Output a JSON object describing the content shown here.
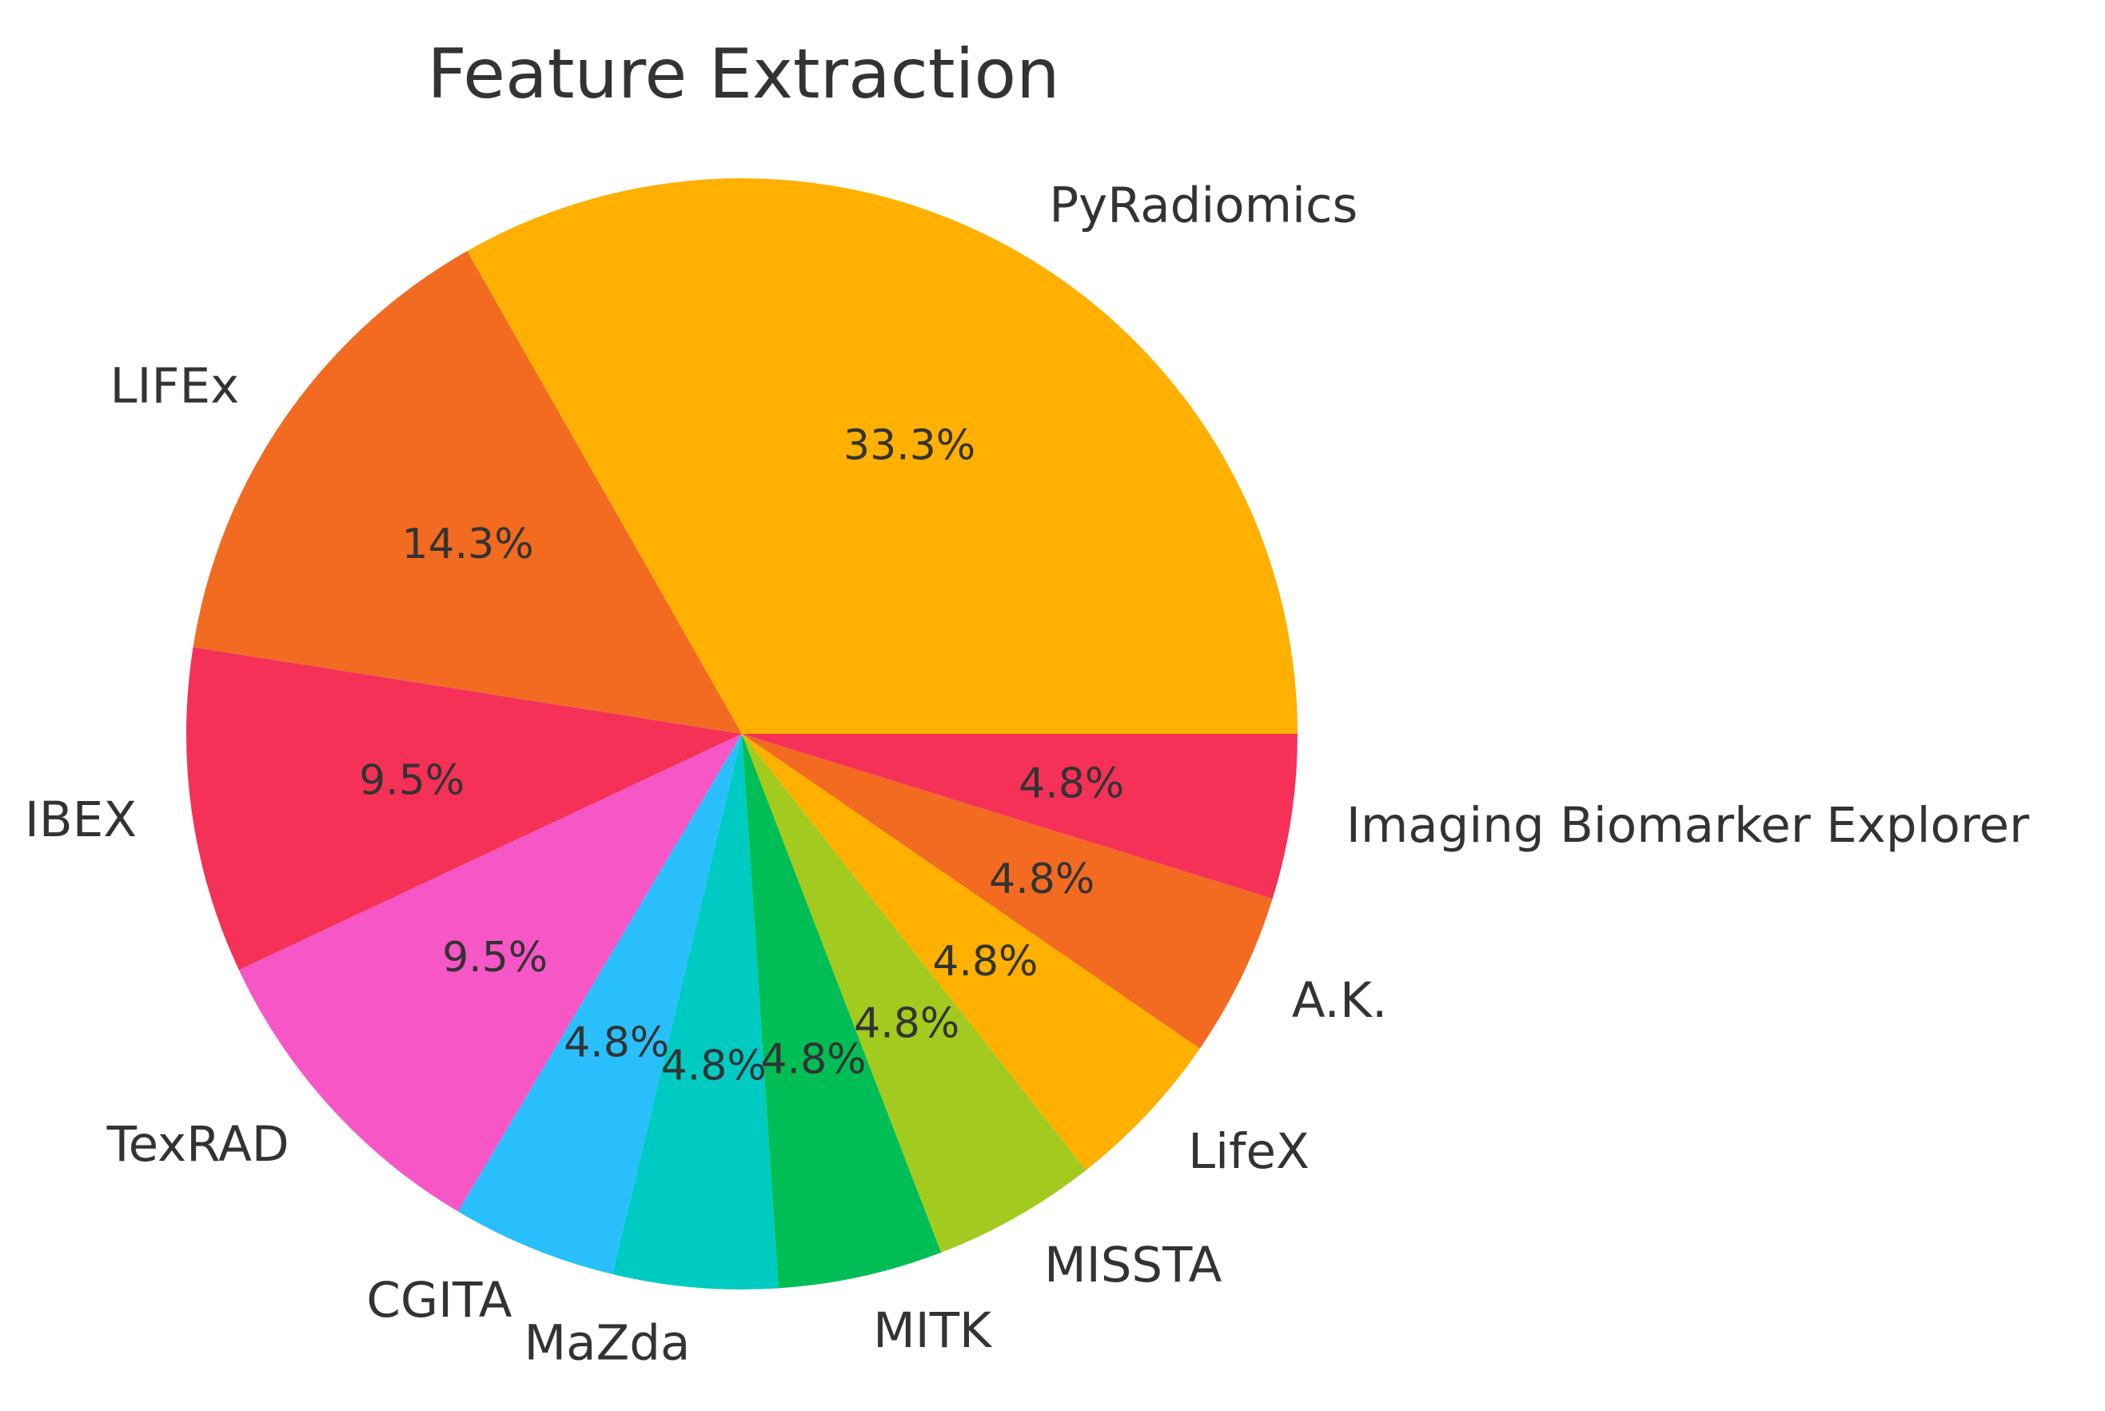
{
  "chart_data": {
    "type": "pie",
    "title": "Feature Extraction",
    "start_angle": 0,
    "direction": "counterclockwise",
    "slices": [
      {
        "label": "PyRadiomics",
        "value": 33.3,
        "pct_label": "33.3%",
        "color": "#FFB000"
      },
      {
        "label": "LIFEx",
        "value": 14.3,
        "pct_label": "14.3%",
        "color": "#F26B21"
      },
      {
        "label": "IBEX",
        "value": 9.5,
        "pct_label": "9.5%",
        "color": "#F53158"
      },
      {
        "label": "TexRAD",
        "value": 9.5,
        "pct_label": "9.5%",
        "color": "#F756C6"
      },
      {
        "label": "CGITA",
        "value": 4.8,
        "pct_label": "4.8%",
        "color": "#29BFFD"
      },
      {
        "label": "MaZda",
        "value": 4.8,
        "pct_label": "4.8%",
        "color": "#00CBC2"
      },
      {
        "label": "MITK",
        "value": 4.8,
        "pct_label": "4.8%",
        "color": "#00BE55"
      },
      {
        "label": "MISSTA",
        "value": 4.8,
        "pct_label": "4.8%",
        "color": "#A2CA1F"
      },
      {
        "label": "LifeX",
        "value": 4.8,
        "pct_label": "4.8%",
        "color": "#FFB000"
      },
      {
        "label": "A.K.",
        "value": 4.8,
        "pct_label": "4.8%",
        "color": "#F26B21"
      },
      {
        "label": "Imaging Biomarker Explorer",
        "value": 4.8,
        "pct_label": "4.8%",
        "color": "#F53158"
      }
    ]
  }
}
